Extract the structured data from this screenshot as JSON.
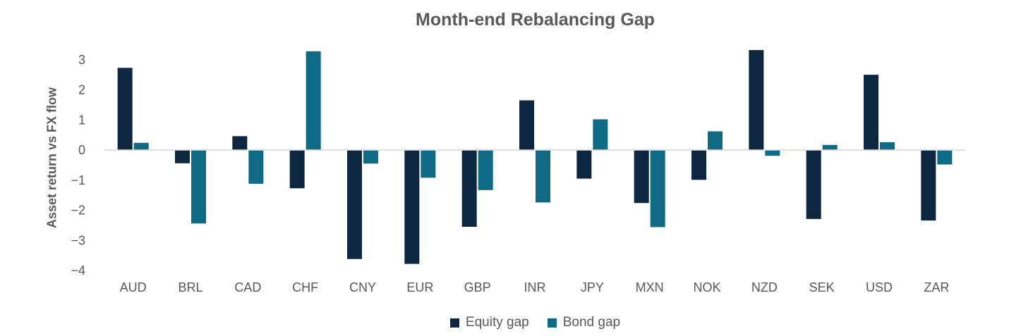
{
  "chart_data": {
    "type": "bar",
    "title": "Month-end Rebalancing Gap",
    "xlabel": "",
    "ylabel": "Asset return vs FX flow",
    "ylim": [
      -4,
      3.4
    ],
    "yticks": [
      3,
      2,
      1,
      0,
      -1,
      -2,
      -3,
      -4
    ],
    "ytick_labels": [
      "3",
      "2",
      "1",
      "0",
      "−1",
      "−2",
      "−3",
      "−4"
    ],
    "grid": false,
    "legend": "bottom",
    "categories": [
      "AUD",
      "BRL",
      "CAD",
      "CHF",
      "CNY",
      "EUR",
      "GBP",
      "INR",
      "JPY",
      "MXN",
      "NOK",
      "NZD",
      "SEK",
      "USD",
      "ZAR"
    ],
    "series": [
      {
        "name": "Equity gap",
        "color": "#0d2740",
        "values": [
          2.73,
          -0.44,
          0.46,
          -1.27,
          -3.62,
          -3.78,
          -2.55,
          1.65,
          -0.95,
          -1.76,
          -0.99,
          3.32,
          -2.29,
          2.5,
          -2.34
        ]
      },
      {
        "name": "Bond gap",
        "color": "#0f6b85",
        "values": [
          0.24,
          -2.44,
          -1.12,
          3.28,
          -0.45,
          -0.92,
          -1.33,
          -1.74,
          1.02,
          -2.56,
          0.62,
          -0.19,
          0.17,
          0.26,
          -0.48
        ]
      }
    ]
  }
}
